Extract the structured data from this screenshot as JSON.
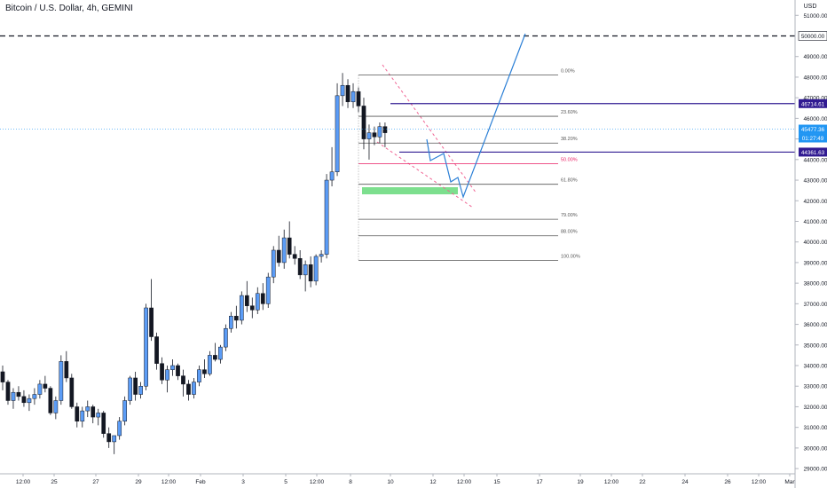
{
  "header": {
    "symbol": "Bitcoin / U.S. Dollar",
    "interval": "4h",
    "exchange": "GEMINI"
  },
  "price_axis": {
    "currency": "USD",
    "ticks": [
      "29000.00",
      "30000.00",
      "31000.00",
      "32000.00",
      "33000.00",
      "34000.00",
      "35000.00",
      "36000.00",
      "37000.00",
      "38000.00",
      "39000.00",
      "40000.00",
      "41000.00",
      "42000.00",
      "43000.00",
      "44000.00",
      "45000.00",
      "46000.00",
      "47000.00",
      "48000.00",
      "49000.00",
      "51000.00"
    ]
  },
  "time_axis": {
    "labels": [
      "12:00",
      "25",
      "27",
      "29",
      "12:00",
      "Feb",
      "3",
      "5",
      "12:00",
      "8",
      "10",
      "12",
      "12:00",
      "15",
      "17",
      "19",
      "12:00",
      "22",
      "24",
      "26",
      "12:00",
      "Mar"
    ]
  },
  "labels": {
    "level_50000": "50000.00",
    "level_46714": "46714.61",
    "current_price": "45477.36",
    "countdown": "01:27:49",
    "level_44361": "44361.63"
  },
  "fib_labels": [
    "0.00%",
    "23.60%",
    "38.20%",
    "50.00%",
    "61.80%",
    "79.00%",
    "88.00%",
    "100.00%"
  ],
  "colors": {
    "up": "#5b9cf6",
    "down": "#131722",
    "current_price": "#2196f3",
    "level_line": "#311b92",
    "fib_line": "#555555",
    "fib_mid": "#e91e63",
    "zone": "#66d97a",
    "projection": "#2b7fd6",
    "channel": "#f06292"
  },
  "chart_data": {
    "type": "candlestick",
    "title": "Bitcoin / U.S. Dollar, 4h, GEMINI",
    "x_domain": [
      "Jan 23 12:00",
      "Mar 1 00:00"
    ],
    "ylim": [
      28700,
      51400
    ],
    "ohlc_approx": [
      [
        33700,
        34000,
        32800,
        33200
      ],
      [
        33200,
        33300,
        32100,
        32300
      ],
      [
        32300,
        32900,
        31900,
        32700
      ],
      [
        32700,
        33000,
        32300,
        32500
      ],
      [
        32500,
        32800,
        32000,
        32200
      ],
      [
        32200,
        32600,
        31800,
        32400
      ],
      [
        32400,
        32900,
        32100,
        32600
      ],
      [
        32600,
        33300,
        32400,
        33100
      ],
      [
        33100,
        33500,
        32700,
        32900
      ],
      [
        32900,
        33000,
        31600,
        31700
      ],
      [
        31700,
        32500,
        31400,
        32300
      ],
      [
        32300,
        34500,
        32100,
        34200
      ],
      [
        34200,
        34700,
        33200,
        33400
      ],
      [
        33400,
        33600,
        31900,
        32000
      ],
      [
        32000,
        32200,
        31000,
        31300
      ],
      [
        31300,
        32000,
        31000,
        31800
      ],
      [
        31800,
        32300,
        31500,
        32000
      ],
      [
        32000,
        32100,
        31200,
        31500
      ],
      [
        31500,
        31900,
        31100,
        31700
      ],
      [
        31700,
        31800,
        30500,
        30700
      ],
      [
        30700,
        31000,
        30000,
        30300
      ],
      [
        30300,
        30600,
        29700,
        30600
      ],
      [
        30600,
        31500,
        30400,
        31300
      ],
      [
        31300,
        32500,
        31100,
        32300
      ],
      [
        32300,
        33500,
        32100,
        33400
      ],
      [
        33400,
        33700,
        32300,
        32600
      ],
      [
        32600,
        33200,
        32400,
        33000
      ],
      [
        33000,
        37000,
        32800,
        36800
      ],
      [
        36800,
        38200,
        35200,
        35400
      ],
      [
        35400,
        35600,
        33800,
        34100
      ],
      [
        34100,
        34400,
        33100,
        33300
      ],
      [
        33300,
        34000,
        32700,
        33800
      ],
      [
        33800,
        34300,
        33500,
        34000
      ],
      [
        34000,
        34100,
        33300,
        33500
      ],
      [
        33500,
        33800,
        32500,
        33100
      ],
      [
        33100,
        33300,
        32300,
        32600
      ],
      [
        32600,
        33400,
        32400,
        33200
      ],
      [
        33200,
        34000,
        33000,
        33800
      ],
      [
        33800,
        34300,
        33400,
        33600
      ],
      [
        33600,
        34700,
        33500,
        34500
      ],
      [
        34500,
        35100,
        34200,
        34300
      ],
      [
        34300,
        35000,
        34100,
        34900
      ],
      [
        34900,
        36000,
        34700,
        35800
      ],
      [
        35800,
        36600,
        35600,
        36400
      ],
      [
        36400,
        36900,
        35800,
        36200
      ],
      [
        36200,
        37600,
        36000,
        37400
      ],
      [
        37400,
        38100,
        36600,
        36900
      ],
      [
        36900,
        37300,
        36300,
        36700
      ],
      [
        36700,
        37800,
        36500,
        37500
      ],
      [
        37500,
        38000,
        36700,
        37000
      ],
      [
        37000,
        38500,
        36800,
        38300
      ],
      [
        38300,
        39800,
        38000,
        39600
      ],
      [
        39600,
        40300,
        38800,
        39000
      ],
      [
        39000,
        40600,
        38700,
        40200
      ],
      [
        40200,
        41000,
        39200,
        39400
      ],
      [
        39400,
        39800,
        38900,
        39200
      ],
      [
        39200,
        39600,
        38200,
        38400
      ],
      [
        38400,
        39100,
        37600,
        38900
      ],
      [
        38900,
        39300,
        37800,
        38100
      ],
      [
        38100,
        39400,
        37900,
        39300
      ],
      [
        39300,
        39600,
        39000,
        39400
      ],
      [
        39400,
        43300,
        39200,
        43000
      ],
      [
        43000,
        44600,
        42700,
        43400
      ],
      [
        43400,
        47700,
        43200,
        47100
      ],
      [
        47100,
        48200,
        46600,
        47600
      ],
      [
        47600,
        47900,
        46500,
        46800
      ],
      [
        46800,
        47700,
        46500,
        47300
      ],
      [
        47300,
        47500,
        46300,
        46600
      ],
      [
        46600,
        47000,
        44500,
        45000
      ],
      [
        45000,
        45700,
        44000,
        45300
      ],
      [
        45300,
        45600,
        44700,
        45100
      ],
      [
        45100,
        45800,
        44800,
        45600
      ],
      [
        45600,
        45800,
        44600,
        45300
      ]
    ]
  }
}
